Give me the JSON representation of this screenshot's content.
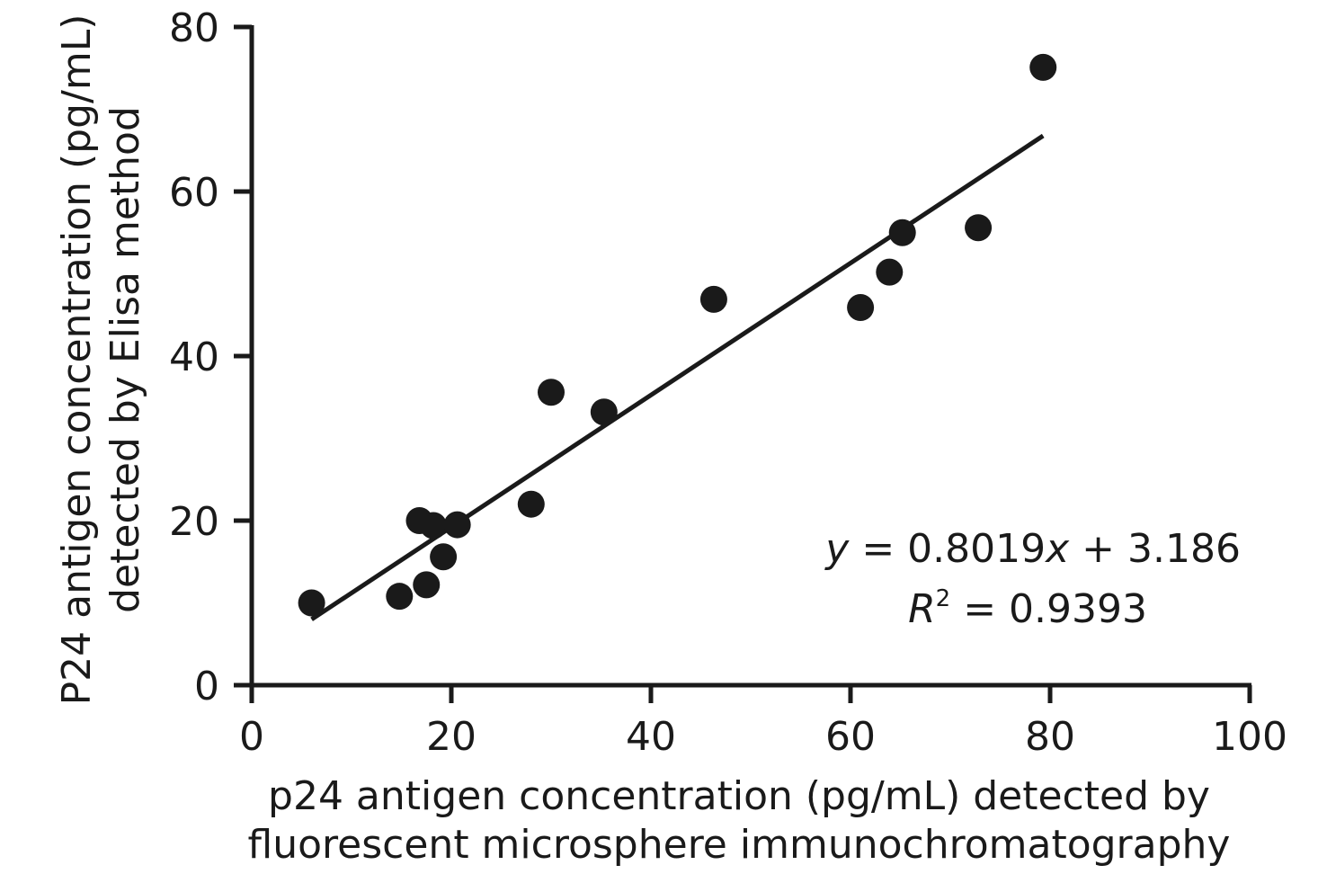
{
  "chart_data": {
    "type": "scatter",
    "title": "",
    "xlabel_lines": [
      "p24 antigen concentration (pg/mL) detected by",
      "fluorescent microsphere immunochromatography"
    ],
    "ylabel_lines": [
      "P24 antigen concentration (pg/mL)",
      "detected by Elisa method"
    ],
    "xlim": [
      0,
      100
    ],
    "ylim": [
      0,
      80
    ],
    "xticks": [
      0,
      20,
      40,
      60,
      80,
      100
    ],
    "yticks": [
      0,
      20,
      40,
      60,
      80
    ],
    "grid": false,
    "legend": "none",
    "marker_color": "#1a1a1a",
    "points": [
      {
        "x": 6.0,
        "y": 10.0
      },
      {
        "x": 14.8,
        "y": 10.8
      },
      {
        "x": 16.8,
        "y": 20.0
      },
      {
        "x": 17.5,
        "y": 12.2
      },
      {
        "x": 18.2,
        "y": 19.4
      },
      {
        "x": 19.2,
        "y": 15.6
      },
      {
        "x": 20.6,
        "y": 19.5
      },
      {
        "x": 28.0,
        "y": 22.0
      },
      {
        "x": 30.0,
        "y": 35.6
      },
      {
        "x": 35.3,
        "y": 33.2
      },
      {
        "x": 46.3,
        "y": 46.9
      },
      {
        "x": 61.0,
        "y": 45.9
      },
      {
        "x": 63.9,
        "y": 50.2
      },
      {
        "x": 65.2,
        "y": 55.0
      },
      {
        "x": 72.8,
        "y": 55.6
      },
      {
        "x": 79.3,
        "y": 75.1
      }
    ],
    "fit_line": {
      "slope": 0.8019,
      "intercept": 3.186,
      "x_start": 6.0,
      "x_end": 79.3
    },
    "annotation": {
      "equation": {
        "var_y": "y",
        "eq_mid": " = 0.8019",
        "var_x": "x",
        "eq_tail": " + 3.186"
      },
      "r2": {
        "var": "R",
        "sup": "2",
        "tail": " = 0.9393"
      }
    }
  }
}
